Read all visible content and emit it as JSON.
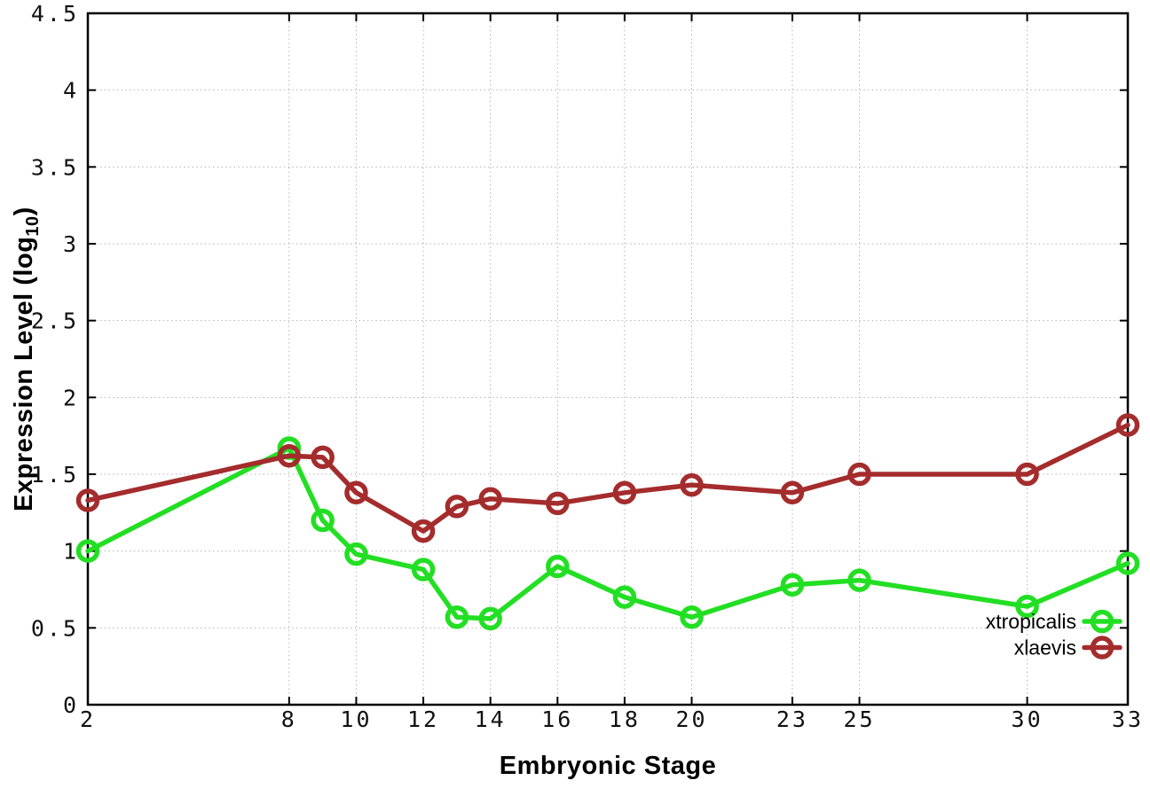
{
  "figure": {
    "background": "#ffffff",
    "xlabel": "Embryonic Stage",
    "ylabel_prefix": "Expression Level (log",
    "ylabel_sub": "10",
    "ylabel_suffix": ")"
  },
  "chart_data": {
    "type": "line",
    "title": "",
    "xlabel": "Embryonic Stage",
    "ylabel": "Expression Level (log10)",
    "xlim": [
      2,
      33
    ],
    "ylim": [
      0,
      4.5
    ],
    "x_ticks": [
      2,
      8,
      10,
      12,
      14,
      16,
      18,
      20,
      23,
      25,
      30,
      33
    ],
    "y_ticks": [
      0,
      0.5,
      1,
      1.5,
      2,
      2.5,
      3,
      3.5,
      4,
      4.5
    ],
    "grid": true,
    "grid_style": "dotted",
    "legend_position": "inside-bottom-right",
    "marker": "open-circle",
    "x": [
      2,
      8,
      9,
      10,
      12,
      13,
      14,
      16,
      18,
      20,
      23,
      25,
      30,
      33
    ],
    "series": [
      {
        "name": "xtropicalis",
        "color": "#23df23",
        "values": [
          1.0,
          1.67,
          1.2,
          0.98,
          0.88,
          0.57,
          0.56,
          0.9,
          0.7,
          0.57,
          0.78,
          0.81,
          0.64,
          0.92
        ]
      },
      {
        "name": "xlaevis",
        "color": "#a52c2c",
        "values": [
          1.33,
          1.62,
          1.61,
          1.38,
          1.13,
          1.29,
          1.34,
          1.31,
          1.38,
          1.43,
          1.38,
          1.5,
          1.5,
          1.82
        ]
      }
    ],
    "axis_color": "#000000",
    "grid_color": "#b2b2b2",
    "tick_label_color": "#111111"
  }
}
